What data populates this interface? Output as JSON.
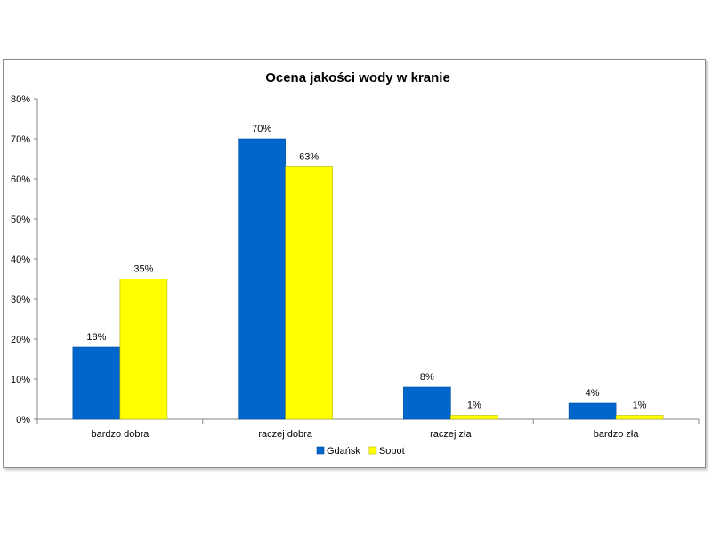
{
  "chart_data": {
    "type": "bar",
    "title": "Ocena jakości wody w kranie",
    "categories": [
      "bardzo dobra",
      "raczej dobra",
      "raczej zła",
      "bardzo zła"
    ],
    "series": [
      {
        "name": "Gdańsk",
        "values": [
          18,
          70,
          8,
          4
        ],
        "color": "#0066cc"
      },
      {
        "name": "Sopot",
        "values": [
          35,
          63,
          1,
          1
        ],
        "color": "#ffff00"
      }
    ],
    "data_labels": [
      [
        "18%",
        "70%",
        "8%",
        "4%"
      ],
      [
        "35%",
        "63%",
        "1%",
        "1%"
      ]
    ],
    "yticks": [
      "0%",
      "10%",
      "20%",
      "30%",
      "40%",
      "50%",
      "60%",
      "70%",
      "80%"
    ],
    "ylim": [
      0,
      80
    ],
    "grid": false,
    "legend_position": "bottom",
    "xlabel": "",
    "ylabel": ""
  }
}
